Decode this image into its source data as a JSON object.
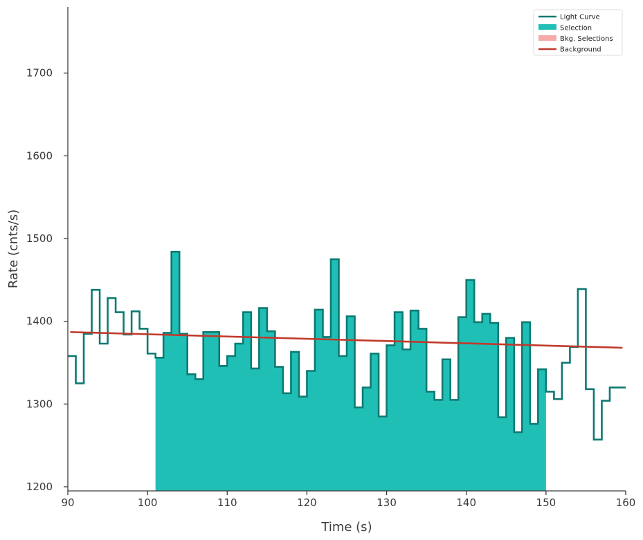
{
  "chart_data": {
    "type": "line",
    "title": "",
    "xlabel": "Time (s)",
    "ylabel": "Rate (cnts/s)",
    "xlim": [
      90,
      160
    ],
    "ylim": [
      1195,
      1780
    ],
    "x_ticks": [
      90,
      100,
      110,
      120,
      130,
      140,
      150,
      160
    ],
    "y_ticks": [
      1200,
      1300,
      1400,
      1500,
      1600,
      1700
    ],
    "x_tick_labels": [
      "90",
      "100",
      "110",
      "120",
      "130",
      "140",
      "150",
      "160"
    ],
    "y_tick_labels": [
      "1200",
      "1300",
      "1400",
      "1500",
      "1600",
      "1700"
    ],
    "grid": false,
    "legend_position": "top-right",
    "legend": [
      "Light Curve",
      "Selection",
      "Bkg. Selections",
      "Background"
    ],
    "colors": {
      "light_curve": "#0d7a72",
      "selection": "#20bfb6",
      "bkg_selections": "#f4aaa7",
      "background": "#c0392b",
      "axis": "#3a3a3a"
    },
    "light_curve": {
      "bin_edges": [
        90,
        91,
        92,
        93,
        94,
        95,
        96,
        97,
        98,
        99,
        100,
        101,
        102,
        103,
        104,
        105,
        106,
        107,
        108,
        109,
        110,
        111,
        112,
        113,
        114,
        115,
        116,
        117,
        118,
        119,
        120,
        121,
        122,
        123,
        124,
        125,
        126,
        127,
        128,
        129,
        130,
        131,
        132,
        133,
        134,
        135,
        136,
        137,
        138,
        139,
        140,
        141,
        142,
        143,
        144,
        145,
        146,
        147,
        148,
        149,
        150,
        151,
        152,
        153,
        154,
        155,
        156,
        157,
        158,
        159,
        160
      ],
      "rates": [
        1358,
        1325,
        1385,
        1438,
        1373,
        1428,
        1411,
        1384,
        1412,
        1391,
        1361,
        1356,
        1386,
        1484,
        1385,
        1336,
        1330,
        1387,
        1387,
        1346,
        1358,
        1373,
        1411,
        1343,
        1416,
        1388,
        1345,
        1313,
        1363,
        1309,
        1340,
        1414,
        1381,
        1475,
        1358,
        1406,
        1296,
        1320,
        1361,
        1285,
        1371,
        1411,
        1366,
        1413,
        1391,
        1315,
        1305,
        1354,
        1305,
        1405,
        1450,
        1399,
        1409,
        1398,
        1284,
        1380,
        1266,
        1399,
        1276,
        1342,
        1315,
        1306,
        1350,
        1369,
        1439,
        1318,
        1257,
        1304,
        1320,
        1320
      ]
    },
    "selection": {
      "start": 101,
      "end": 150
    },
    "background_line": {
      "x": [
        90.3,
        159.6
      ],
      "y": [
        1387,
        1368
      ]
    }
  }
}
